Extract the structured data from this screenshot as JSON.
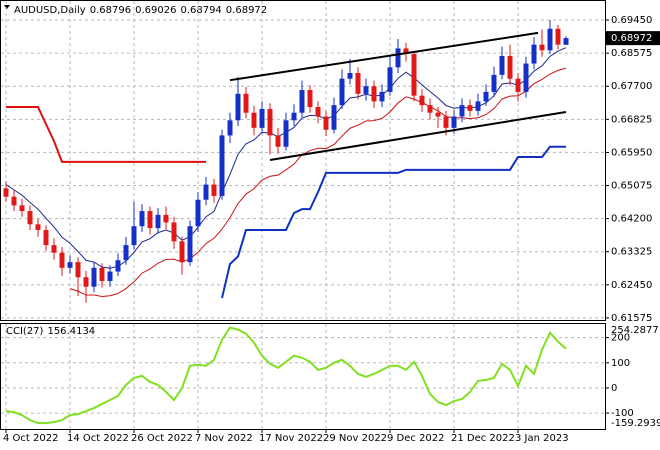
{
  "chart_data": [
    {
      "type": "candlestick",
      "title": "AUDUSD,Daily",
      "categories": [
        "4 Oct 2022",
        null,
        null,
        null,
        null,
        null,
        null,
        null,
        "14 Oct 2022",
        null,
        null,
        null,
        null,
        null,
        null,
        null,
        "26 Oct 2022",
        null,
        null,
        null,
        null,
        null,
        null,
        null,
        "7 Nov 2022",
        null,
        null,
        null,
        null,
        null,
        null,
        null,
        "17 Nov 2022",
        null,
        null,
        null,
        null,
        null,
        null,
        null,
        "29 Nov 2022",
        null,
        null,
        null,
        null,
        null,
        null,
        null,
        "9 Dec 2022",
        null,
        null,
        null,
        null,
        null,
        null,
        null,
        "21 Dec 2022",
        null,
        null,
        null,
        null,
        null,
        null,
        null,
        "3 Jan 2023",
        null,
        null,
        null,
        null,
        null,
        null
      ],
      "open": [
        0.65,
        0.6478,
        0.6455,
        0.644,
        0.6405,
        0.639,
        0.635,
        0.633,
        0.629,
        0.6305,
        0.6265,
        0.624,
        0.629,
        0.6255,
        0.628,
        0.631,
        0.635,
        0.64,
        0.644,
        0.6395,
        0.643,
        0.641,
        0.636,
        0.6305,
        0.64,
        0.647,
        0.651,
        0.648,
        0.664,
        0.668,
        0.675,
        0.67,
        0.666,
        0.671,
        0.664,
        0.661,
        0.668,
        0.67,
        0.676,
        0.6715,
        0.669,
        0.6655,
        0.672,
        0.679,
        0.6805,
        0.675,
        0.677,
        0.673,
        0.6755,
        0.682,
        0.687,
        0.6855,
        0.6745,
        0.672,
        0.67,
        0.669,
        0.666,
        0.669,
        0.672,
        0.6705,
        0.673,
        0.6755,
        0.68,
        0.685,
        0.679,
        0.6755,
        0.683,
        0.688,
        0.6865,
        0.6922,
        0.68796
      ],
      "high": [
        0.6518,
        0.6495,
        0.6472,
        0.6455,
        0.642,
        0.6402,
        0.6368,
        0.6345,
        0.6322,
        0.6318,
        0.6282,
        0.6305,
        0.6302,
        0.6296,
        0.6328,
        0.6372,
        0.6465,
        0.6458,
        0.6452,
        0.6448,
        0.6452,
        0.6425,
        0.6372,
        0.6415,
        0.649,
        0.653,
        0.6525,
        0.6655,
        0.67,
        0.6795,
        0.6768,
        0.6718,
        0.673,
        0.6725,
        0.666,
        0.67,
        0.6722,
        0.6785,
        0.6772,
        0.673,
        0.6705,
        0.674,
        0.6815,
        0.6842,
        0.682,
        0.679,
        0.6785,
        0.6775,
        0.685,
        0.6895,
        0.6885,
        0.6862,
        0.6762,
        0.6738,
        0.6715,
        0.6705,
        0.6708,
        0.6738,
        0.6735,
        0.675,
        0.6775,
        0.6822,
        0.6875,
        0.688,
        0.6805,
        0.6848,
        0.69,
        0.692,
        0.6945,
        0.6932,
        0.69026
      ],
      "low": [
        0.6465,
        0.644,
        0.6425,
        0.639,
        0.6372,
        0.6335,
        0.6312,
        0.6268,
        0.6275,
        0.6215,
        0.6198,
        0.6225,
        0.6238,
        0.624,
        0.6268,
        0.6298,
        0.6338,
        0.6385,
        0.6378,
        0.638,
        0.6392,
        0.634,
        0.6272,
        0.6295,
        0.6385,
        0.6455,
        0.6462,
        0.647,
        0.662,
        0.6665,
        0.6685,
        0.664,
        0.6645,
        0.659,
        0.6592,
        0.66,
        0.6665,
        0.6688,
        0.67,
        0.6672,
        0.6638,
        0.6645,
        0.671,
        0.6775,
        0.6735,
        0.6732,
        0.6712,
        0.6715,
        0.6745,
        0.6805,
        0.6835,
        0.673,
        0.6702,
        0.6682,
        0.666,
        0.664,
        0.6645,
        0.6675,
        0.669,
        0.6692,
        0.6718,
        0.6742,
        0.6788,
        0.6772,
        0.673,
        0.674,
        0.6815,
        0.6848,
        0.6855,
        0.6868,
        0.68794
      ],
      "close": [
        0.6478,
        0.6455,
        0.644,
        0.6405,
        0.639,
        0.635,
        0.633,
        0.629,
        0.6305,
        0.6265,
        0.624,
        0.629,
        0.6255,
        0.628,
        0.631,
        0.635,
        0.64,
        0.644,
        0.6395,
        0.643,
        0.641,
        0.636,
        0.6305,
        0.64,
        0.647,
        0.651,
        0.648,
        0.664,
        0.668,
        0.675,
        0.67,
        0.666,
        0.671,
        0.664,
        0.661,
        0.668,
        0.67,
        0.676,
        0.6715,
        0.669,
        0.6655,
        0.672,
        0.679,
        0.6805,
        0.675,
        0.677,
        0.673,
        0.6755,
        0.682,
        0.687,
        0.6855,
        0.6745,
        0.672,
        0.67,
        0.669,
        0.666,
        0.669,
        0.672,
        0.6705,
        0.673,
        0.6755,
        0.68,
        0.685,
        0.679,
        0.6755,
        0.683,
        0.688,
        0.6865,
        0.6922,
        0.688,
        0.68972
      ],
      "up_color": "#1530c8",
      "down_color": "#e01818",
      "series": [
        {
          "color": "#1c2a8c",
          "line_width": 1,
          "values": [
            0.651,
            0.6496,
            0.6482,
            0.6463,
            0.6445,
            0.6421,
            0.6398,
            0.6371,
            0.6355,
            0.6333,
            0.631,
            0.6305,
            0.6292,
            0.6289,
            0.6294,
            0.6308,
            0.6331,
            0.6358,
            0.6367,
            0.6383,
            0.639,
            0.6382,
            0.6363,
            0.6372,
            0.6397,
            0.6425,
            0.6439,
            0.6489,
            0.6537,
            0.659,
            0.6618,
            0.6628,
            0.6648,
            0.6646,
            0.6637,
            0.6648,
            0.6661,
            0.6686,
            0.6693,
            0.6692,
            0.6683,
            0.6692,
            0.6717,
            0.6739,
            0.6742,
            0.6749,
            0.6744,
            0.6747,
            0.6765,
            0.6791,
            0.6807,
            0.6792,
            0.6774,
            0.6756,
            0.6739,
            0.6719,
            0.6712,
            0.6714,
            0.6712,
            0.6716,
            0.6726,
            0.6745,
            0.6776,
            0.6779,
            0.6773,
            0.6787,
            0.681,
            0.6824,
            0.6849,
            0.6863,
            0.6872
          ]
        },
        {
          "color": "#cc1111",
          "line_width": 1,
          "values": [
            null,
            null,
            null,
            null,
            null,
            null,
            null,
            null,
            0.6235,
            0.6228,
            0.6218,
            0.6218,
            0.6214,
            0.6216,
            0.6222,
            0.6235,
            0.6253,
            0.6276,
            0.6287,
            0.6302,
            0.6312,
            0.6313,
            0.6305,
            0.6314,
            0.6331,
            0.6354,
            0.6368,
            0.6392,
            0.6423,
            0.646,
            0.6485,
            0.6499,
            0.6522,
            0.6532,
            0.6535,
            0.6549,
            0.6564,
            0.6589,
            0.66,
            0.6606,
            0.6605,
            0.6616,
            0.6638,
            0.6659,
            0.6667,
            0.6678,
            0.6679,
            0.6685,
            0.6702,
            0.6726,
            0.6742,
            0.6736,
            0.6727,
            0.6716,
            0.6705,
            0.669,
            0.6686,
            0.6687,
            0.6684,
            0.6687,
            0.6695,
            0.6711,
            0.6736,
            0.6744,
            0.6745,
            0.6757,
            0.6777,
            0.6788,
            0.6802,
            0.6812,
            0.6818
          ]
        },
        {
          "color": "#dd1010",
          "line_width": 2,
          "values": [
            0.6715,
            0.6715,
            0.6715,
            0.6715,
            0.6715,
            0.667,
            0.6625,
            0.657,
            0.657,
            0.657,
            0.657,
            0.657,
            0.657,
            0.657,
            0.657,
            0.657,
            0.657,
            0.657,
            0.657,
            0.657,
            0.657,
            0.657,
            0.657,
            0.657,
            0.657,
            0.657,
            null,
            null,
            null,
            null,
            null,
            null,
            null,
            null,
            null,
            null,
            null,
            null,
            null,
            null,
            null,
            null,
            null,
            null,
            null,
            null,
            null,
            null,
            null,
            null,
            null,
            null,
            null,
            null,
            null,
            null,
            null,
            null,
            null,
            null,
            null,
            null,
            null,
            null,
            null,
            null,
            null,
            null,
            null,
            null,
            null
          ]
        },
        {
          "color": "#1030c0",
          "line_width": 2,
          "values": [
            null,
            null,
            null,
            null,
            null,
            null,
            null,
            null,
            null,
            null,
            null,
            null,
            null,
            null,
            null,
            null,
            null,
            null,
            null,
            null,
            null,
            null,
            null,
            null,
            null,
            null,
            null,
            0.621,
            0.63,
            0.632,
            0.639,
            0.639,
            0.639,
            0.639,
            0.639,
            0.639,
            0.6435,
            0.6445,
            0.6445,
            0.649,
            0.6541,
            0.6541,
            0.6541,
            0.6541,
            0.6541,
            0.6541,
            0.6541,
            0.6541,
            0.6541,
            0.6541,
            0.6549,
            0.6549,
            0.6549,
            0.6549,
            0.6549,
            0.6549,
            0.6549,
            0.6549,
            0.6549,
            0.6549,
            0.6549,
            0.6549,
            0.6549,
            0.6549,
            0.6583,
            0.6583,
            0.6583,
            0.6583,
            0.661,
            0.661,
            0.661
          ]
        }
      ],
      "trendlines": [
        {
          "color": "#000000",
          "x": [
            28,
            66.5
          ],
          "y": [
            0.6786,
            0.6911
          ]
        },
        {
          "color": "#000000",
          "x": [
            33,
            70
          ],
          "y": [
            0.6575,
            0.6702
          ]
        }
      ],
      "ylim": [
        0.6152,
        0.6998
      ],
      "yticks": [
        {
          "value": 0.6945,
          "label": "0.69450"
        },
        0.68575,
        {
          "value": 0.677,
          "label": "0.67700"
        },
        0.66825,
        {
          "value": 0.6595,
          "label": "0.65950"
        },
        0.65075,
        {
          "value": 0.642,
          "label": "0.64200"
        },
        0.63325,
        {
          "value": 0.6245,
          "label": "0.62450"
        },
        0.61575
      ],
      "grid": true
    },
    {
      "type": "line",
      "title": "CCI(27)",
      "color": "#80e020",
      "values": [
        -92,
        -96,
        -108,
        -128,
        -140,
        -140,
        -136,
        -128,
        -108,
        -104,
        -92,
        -80,
        -64,
        -48,
        -32,
        12,
        40,
        48,
        24,
        12,
        -16,
        -48,
        0,
        88,
        92,
        88,
        112,
        192,
        240,
        232,
        216,
        180,
        128,
        96,
        80,
        104,
        128,
        120,
        104,
        72,
        80,
        100,
        112,
        88,
        56,
        44,
        56,
        72,
        88,
        88,
        72,
        104,
        48,
        -24,
        -56,
        -68,
        -52,
        -44,
        -16,
        28,
        32,
        40,
        96,
        72,
        8,
        88,
        56,
        152,
        220,
        184,
        156.4134
      ],
      "ylim": [
        -159.2939,
        254.2877
      ],
      "yticks": [
        200,
        100,
        0,
        -100
      ],
      "grid": true
    }
  ]
}
